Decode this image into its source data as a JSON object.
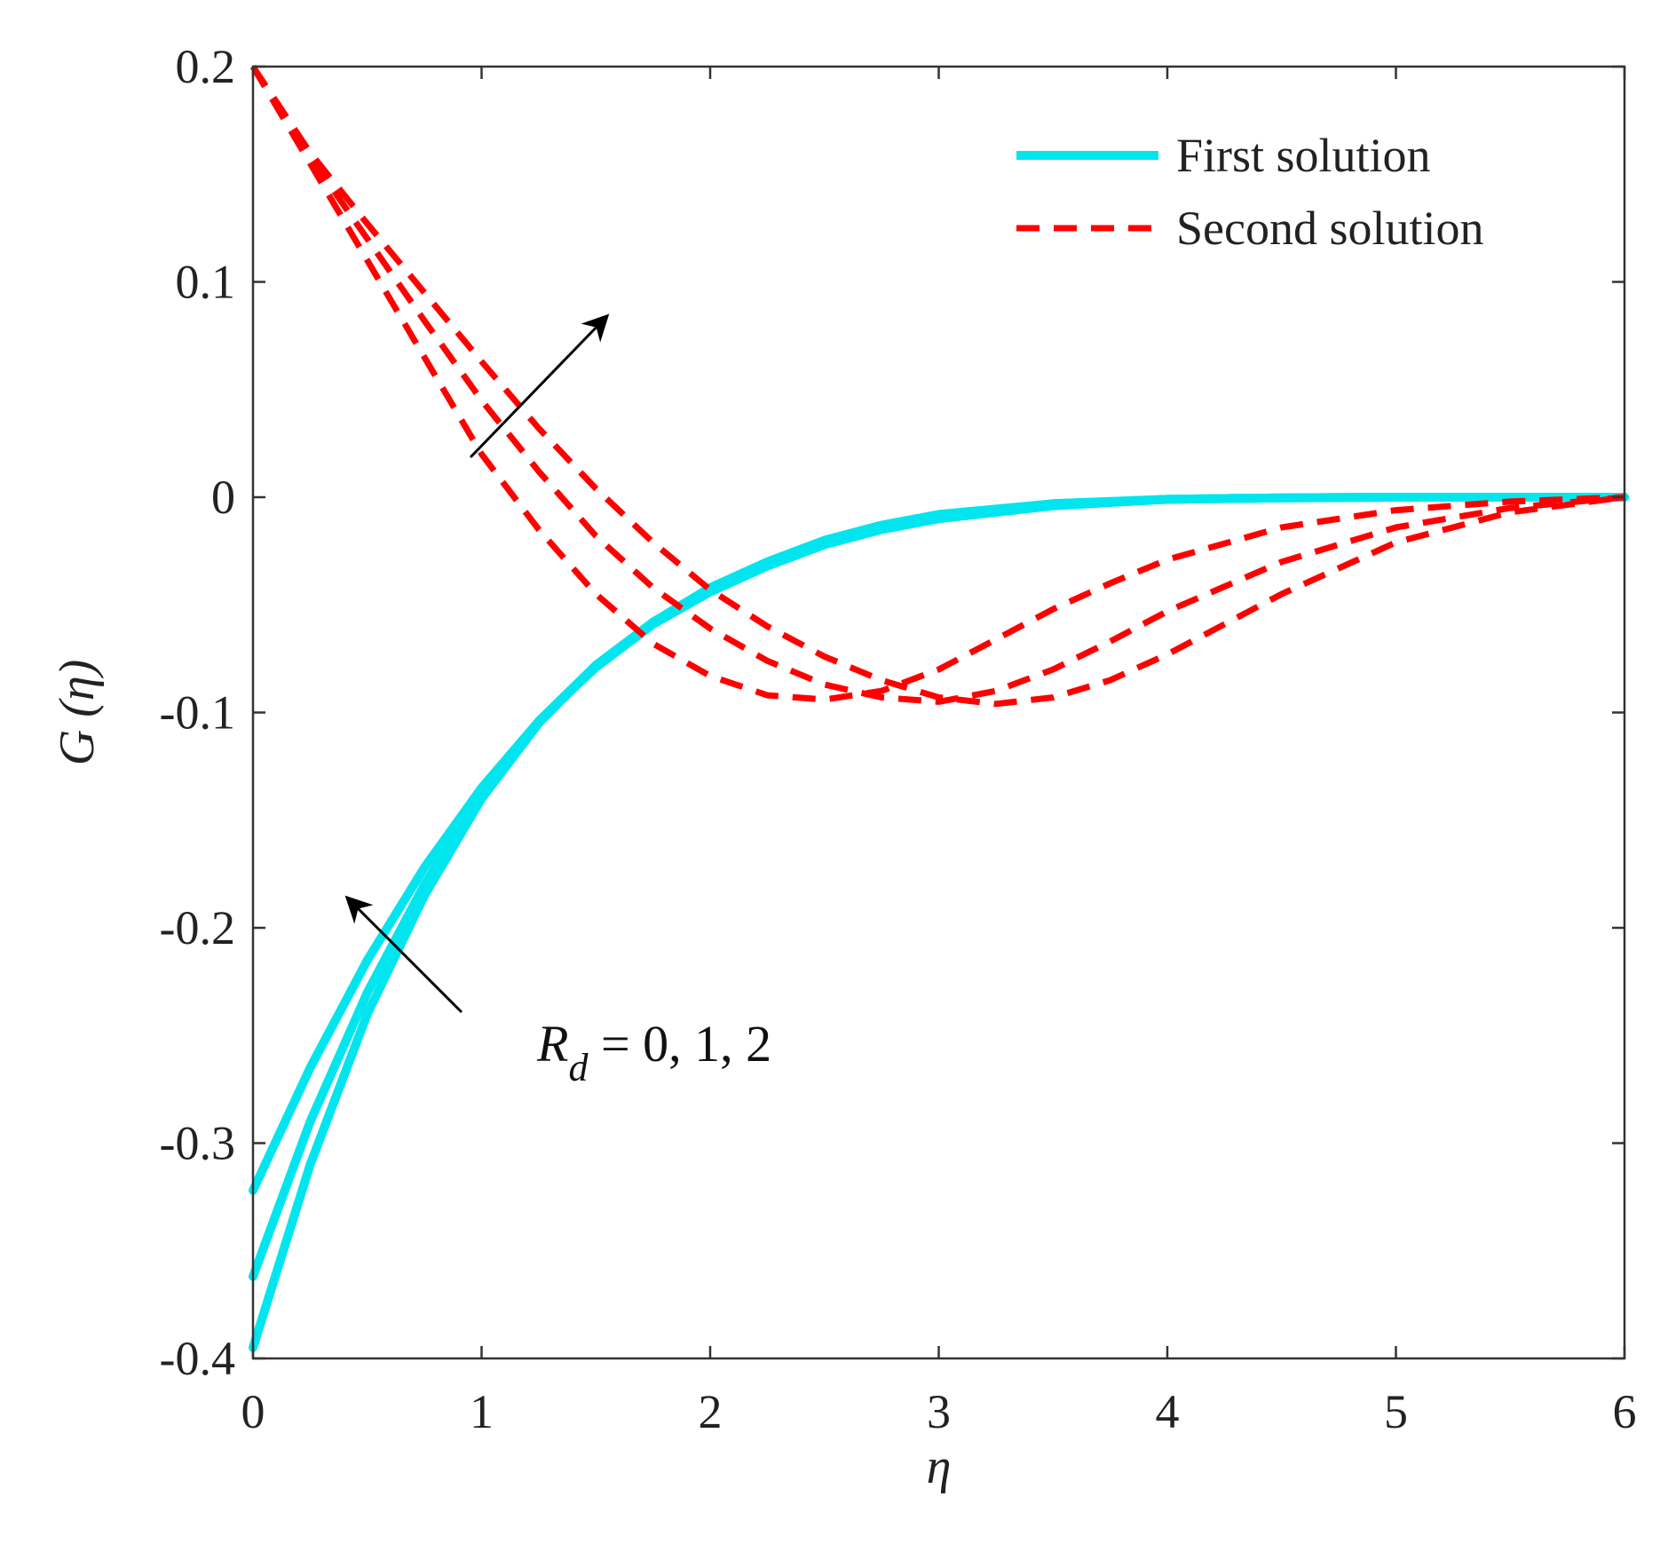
{
  "chart_data": {
    "type": "line",
    "title": "",
    "xlabel": "η",
    "ylabel": "G (η)",
    "xlim": [
      0,
      6
    ],
    "ylim": [
      -0.4,
      0.2
    ],
    "xticks": [
      0,
      1,
      2,
      3,
      4,
      5,
      6
    ],
    "xtick_labels": [
      "0",
      "1",
      "2",
      "3",
      "4",
      "5",
      "6"
    ],
    "yticks": [
      -0.4,
      -0.3,
      -0.2,
      -0.1,
      0,
      0.1,
      0.2
    ],
    "ytick_labels": [
      "-0.4",
      "-0.3",
      "-0.2",
      "-0.1",
      "0",
      "0.1",
      "0.2"
    ],
    "grid": false,
    "legend_position": "top-right",
    "legend": [
      {
        "label": "First solution",
        "style": "solid",
        "color": "#00e5ee"
      },
      {
        "label": "Second solution",
        "style": "dashed",
        "color": "#ff0000"
      }
    ],
    "annotation": {
      "label_main": "R",
      "label_sub": "d",
      "label_rest": " = 0, 1, 2"
    },
    "series": [
      {
        "name": "First solution (Rd = 0)",
        "group": "First solution",
        "style": "solid",
        "color": "#00e5ee",
        "x": [
          0,
          0.25,
          0.5,
          0.75,
          1.0,
          1.25,
          1.5,
          1.75,
          2.0,
          2.25,
          2.5,
          2.75,
          3.0,
          3.5,
          4.0,
          4.5,
          5.0,
          5.5,
          6.0
        ],
        "y": [
          -0.395,
          -0.31,
          -0.24,
          -0.185,
          -0.14,
          -0.105,
          -0.078,
          -0.058,
          -0.042,
          -0.03,
          -0.02,
          -0.013,
          -0.008,
          -0.003,
          -0.001,
          -0.0003,
          0,
          0,
          0
        ]
      },
      {
        "name": "First solution (Rd = 1)",
        "group": "First solution",
        "style": "solid",
        "color": "#00e5ee",
        "x": [
          0,
          0.25,
          0.5,
          0.75,
          1.0,
          1.25,
          1.5,
          1.75,
          2.0,
          2.25,
          2.5,
          2.75,
          3.0,
          3.5,
          4.0,
          4.5,
          5.0,
          5.5,
          6.0
        ],
        "y": [
          -0.362,
          -0.29,
          -0.23,
          -0.18,
          -0.138,
          -0.104,
          -0.078,
          -0.058,
          -0.043,
          -0.031,
          -0.021,
          -0.014,
          -0.009,
          -0.003,
          -0.001,
          -0.0003,
          0,
          0,
          0
        ]
      },
      {
        "name": "First solution (Rd = 2)",
        "group": "First solution",
        "style": "solid",
        "color": "#00e5ee",
        "x": [
          0,
          0.25,
          0.5,
          0.75,
          1.0,
          1.25,
          1.5,
          1.75,
          2.0,
          2.25,
          2.5,
          2.75,
          3.0,
          3.5,
          4.0,
          4.5,
          5.0,
          5.5,
          6.0
        ],
        "y": [
          -0.322,
          -0.265,
          -0.215,
          -0.172,
          -0.135,
          -0.104,
          -0.079,
          -0.059,
          -0.044,
          -0.032,
          -0.022,
          -0.015,
          -0.01,
          -0.004,
          -0.001,
          -0.0003,
          0,
          0,
          0
        ]
      },
      {
        "name": "Second solution (Rd = 0)",
        "group": "Second solution",
        "style": "dashed",
        "color": "#ff0000",
        "x": [
          0,
          0.25,
          0.5,
          0.75,
          1.0,
          1.25,
          1.5,
          1.75,
          2.0,
          2.25,
          2.5,
          2.75,
          3.0,
          3.25,
          3.5,
          3.75,
          4.0,
          4.5,
          5.0,
          5.5,
          6.0
        ],
        "y": [
          0.2,
          0.155,
          0.11,
          0.065,
          0.02,
          -0.015,
          -0.045,
          -0.068,
          -0.083,
          -0.092,
          -0.094,
          -0.09,
          -0.08,
          -0.066,
          -0.052,
          -0.04,
          -0.029,
          -0.014,
          -0.006,
          -0.002,
          0
        ]
      },
      {
        "name": "Second solution (Rd = 1)",
        "group": "Second solution",
        "style": "dashed",
        "color": "#ff0000",
        "x": [
          0,
          0.25,
          0.5,
          0.75,
          1.0,
          1.25,
          1.5,
          1.75,
          2.0,
          2.25,
          2.5,
          2.75,
          3.0,
          3.25,
          3.5,
          3.75,
          4.0,
          4.5,
          5.0,
          5.5,
          6.0
        ],
        "y": [
          0.2,
          0.158,
          0.12,
          0.082,
          0.045,
          0.012,
          -0.018,
          -0.042,
          -0.061,
          -0.076,
          -0.087,
          -0.093,
          -0.095,
          -0.09,
          -0.08,
          -0.067,
          -0.053,
          -0.03,
          -0.014,
          -0.005,
          0
        ]
      },
      {
        "name": "Second solution (Rd = 2)",
        "group": "Second solution",
        "style": "dashed",
        "color": "#ff0000",
        "x": [
          0,
          0.25,
          0.5,
          0.75,
          1.0,
          1.25,
          1.5,
          1.75,
          2.0,
          2.25,
          2.5,
          2.75,
          3.0,
          3.25,
          3.5,
          3.75,
          4.0,
          4.5,
          5.0,
          5.5,
          6.0
        ],
        "y": [
          0.2,
          0.16,
          0.127,
          0.095,
          0.063,
          0.032,
          0.004,
          -0.021,
          -0.043,
          -0.06,
          -0.074,
          -0.085,
          -0.093,
          -0.096,
          -0.093,
          -0.085,
          -0.073,
          -0.045,
          -0.021,
          -0.007,
          0
        ]
      }
    ]
  }
}
